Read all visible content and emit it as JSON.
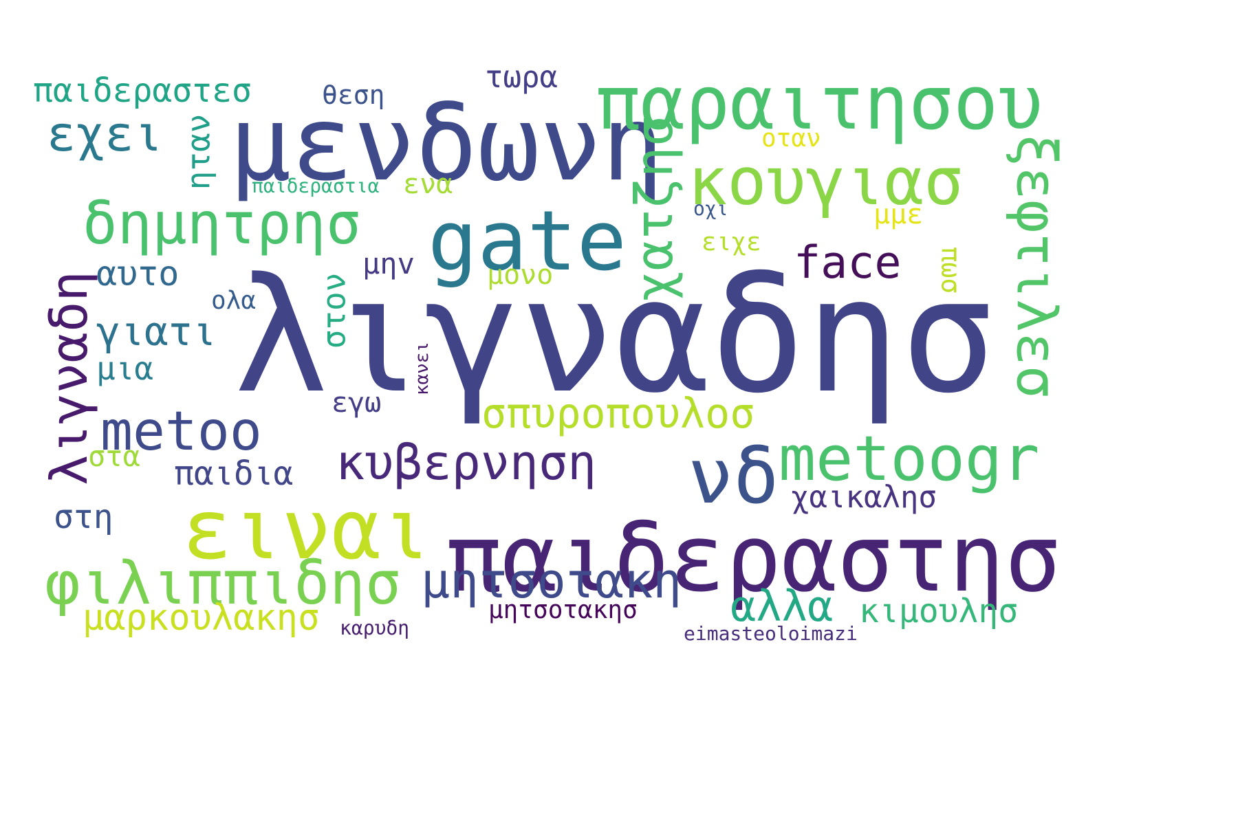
{
  "words": [
    {
      "text": "λιγναδησ",
      "color": "#414487"
    },
    {
      "text": "παιδεραστησ",
      "color": "#482475"
    },
    {
      "text": "μενδωνη",
      "color": "#3e4a89"
    },
    {
      "text": "παραιτησου",
      "color": "#4ac16d"
    },
    {
      "text": "gate",
      "color": "#2a788e"
    },
    {
      "text": "ειναι",
      "color": "#c2df23"
    },
    {
      "text": "κουγιασ",
      "color": "#8bd646"
    },
    {
      "text": "νδ",
      "color": "#3b528b"
    },
    {
      "text": "metoogr",
      "color": "#4ac16d"
    },
    {
      "text": "φιλιππιδησ",
      "color": "#7ad151"
    },
    {
      "text": "δημητρησ",
      "color": "#4ac16d"
    },
    {
      "text": "χατζησ",
      "color": "#4ac16d"
    },
    {
      "text": "ξεφτιλεσ",
      "color": "#52c569"
    },
    {
      "text": "λιγναδη",
      "color": "#481a6c"
    },
    {
      "text": "metoo",
      "color": "#3e4a89"
    },
    {
      "text": "μητσοτακη",
      "color": "#3e4a89"
    },
    {
      "text": "κυβερνηση",
      "color": "#482878"
    },
    {
      "text": "εχει",
      "color": "#2a788e"
    },
    {
      "text": "face",
      "color": "#440f58"
    },
    {
      "text": "σπυροπουλοσ",
      "color": "#b5de2b"
    },
    {
      "text": "αλλα",
      "color": "#22a884"
    },
    {
      "text": "κιμουλησ",
      "color": "#35b779"
    },
    {
      "text": "μαρκουλακησ",
      "color": "#c8e020"
    },
    {
      "text": "παιδεραστεσ",
      "color": "#20a486"
    },
    {
      "text": "γιατι",
      "color": "#2c728e"
    },
    {
      "text": "χαικαλησ",
      "color": "#46327e"
    },
    {
      "text": "παιδια",
      "color": "#404688"
    },
    {
      "text": "αυτο",
      "color": "#31688e"
    },
    {
      "text": "ηταν",
      "color": "#1f9e89"
    },
    {
      "text": "στον",
      "color": "#25ac82"
    },
    {
      "text": "τωρα",
      "color": "#433e85"
    },
    {
      "text": "μια",
      "color": "#287d8e"
    },
    {
      "text": "στα",
      "color": "#a0da39"
    },
    {
      "text": "στη",
      "color": "#3b528b"
    },
    {
      "text": "μητσοτακησ",
      "color": "#450559"
    },
    {
      "text": "ενα",
      "color": "#a5db36"
    },
    {
      "text": "μμε",
      "color": "#e5e419"
    },
    {
      "text": "θεση",
      "color": "#3b528b"
    },
    {
      "text": "μηv",
      "color": "#443983"
    },
    {
      "text": "μονο",
      "color": "#addc30"
    },
    {
      "text": "εγω",
      "color": "#433e85"
    },
    {
      "text": "πωσ",
      "color": "#bddf26"
    },
    {
      "text": "ολα",
      "color": "#365c8d"
    },
    {
      "text": "οταν",
      "color": "#e5e419"
    },
    {
      "text": "ειχε",
      "color": "#b5de2b"
    },
    {
      "text": "παιδεραστια",
      "color": "#2db27d"
    },
    {
      "text": "καρυδη",
      "color": "#481f70"
    },
    {
      "text": "κανει",
      "color": "#48186a"
    },
    {
      "text": "οχι",
      "color": "#39568c"
    },
    {
      "text": "eimasteoloimazi",
      "color": "#472d7b"
    }
  ]
}
